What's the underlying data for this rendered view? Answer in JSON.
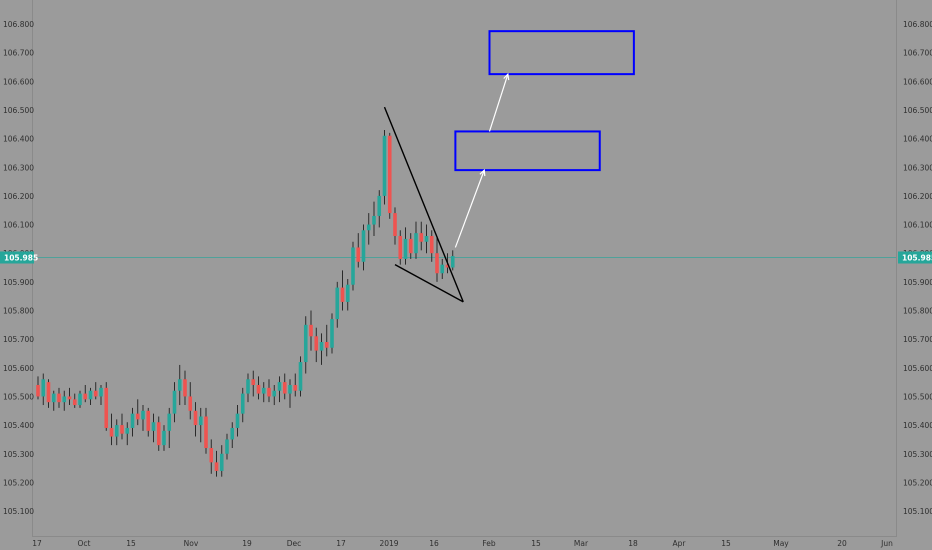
{
  "chart_data": {
    "type": "candlestick",
    "title": "",
    "ylim": [
      105.05,
      106.86
    ],
    "y_ticks": [
      "106.800",
      "106.700",
      "106.600",
      "106.500",
      "106.400",
      "106.300",
      "106.200",
      "106.100",
      "106.000",
      "105.900",
      "105.800",
      "105.700",
      "105.600",
      "105.500",
      "105.400",
      "105.300",
      "105.200",
      "105.100"
    ],
    "x_ticks": [
      "17",
      "Oct",
      "15",
      "Nov",
      "19",
      "Dec",
      "17",
      "2019",
      "16",
      "Feb",
      "15",
      "Mar",
      "18",
      "Apr",
      "15",
      "May",
      "20",
      "Jun"
    ],
    "current_price": "105.985",
    "grid": false,
    "colors": {
      "background": "#9b9b9b",
      "up": "#26a69a",
      "down": "#ef5350",
      "wick": "#1f1f1f",
      "price_line": "#26a69a",
      "target_box": "#0000ff",
      "trendline": "#000000",
      "arrow": "#ffffff"
    },
    "candles": [
      {
        "o": 105.54,
        "h": 105.57,
        "l": 105.49,
        "c": 105.5
      },
      {
        "o": 105.5,
        "h": 105.58,
        "l": 105.47,
        "c": 105.56
      },
      {
        "o": 105.55,
        "h": 105.56,
        "l": 105.46,
        "c": 105.48
      },
      {
        "o": 105.48,
        "h": 105.52,
        "l": 105.45,
        "c": 105.51
      },
      {
        "o": 105.51,
        "h": 105.53,
        "l": 105.46,
        "c": 105.48
      },
      {
        "o": 105.48,
        "h": 105.52,
        "l": 105.45,
        "c": 105.5
      },
      {
        "o": 105.5,
        "h": 105.53,
        "l": 105.47,
        "c": 105.49
      },
      {
        "o": 105.49,
        "h": 105.51,
        "l": 105.46,
        "c": 105.47
      },
      {
        "o": 105.47,
        "h": 105.52,
        "l": 105.46,
        "c": 105.51
      },
      {
        "o": 105.51,
        "h": 105.54,
        "l": 105.48,
        "c": 105.49
      },
      {
        "o": 105.49,
        "h": 105.53,
        "l": 105.47,
        "c": 105.52
      },
      {
        "o": 105.52,
        "h": 105.55,
        "l": 105.49,
        "c": 105.5
      },
      {
        "o": 105.5,
        "h": 105.54,
        "l": 105.47,
        "c": 105.53
      },
      {
        "o": 105.53,
        "h": 105.55,
        "l": 105.38,
        "c": 105.39
      },
      {
        "o": 105.39,
        "h": 105.44,
        "l": 105.33,
        "c": 105.36
      },
      {
        "o": 105.36,
        "h": 105.42,
        "l": 105.33,
        "c": 105.4
      },
      {
        "o": 105.4,
        "h": 105.44,
        "l": 105.35,
        "c": 105.37
      },
      {
        "o": 105.37,
        "h": 105.41,
        "l": 105.33,
        "c": 105.39
      },
      {
        "o": 105.39,
        "h": 105.46,
        "l": 105.36,
        "c": 105.44
      },
      {
        "o": 105.44,
        "h": 105.49,
        "l": 105.4,
        "c": 105.42
      },
      {
        "o": 105.42,
        "h": 105.47,
        "l": 105.38,
        "c": 105.45
      },
      {
        "o": 105.45,
        "h": 105.46,
        "l": 105.36,
        "c": 105.38
      },
      {
        "o": 105.38,
        "h": 105.44,
        "l": 105.34,
        "c": 105.41
      },
      {
        "o": 105.41,
        "h": 105.43,
        "l": 105.31,
        "c": 105.33
      },
      {
        "o": 105.33,
        "h": 105.4,
        "l": 105.31,
        "c": 105.38
      },
      {
        "o": 105.38,
        "h": 105.46,
        "l": 105.32,
        "c": 105.44
      },
      {
        "o": 105.44,
        "h": 105.55,
        "l": 105.41,
        "c": 105.52
      },
      {
        "o": 105.52,
        "h": 105.61,
        "l": 105.47,
        "c": 105.56
      },
      {
        "o": 105.56,
        "h": 105.59,
        "l": 105.47,
        "c": 105.5
      },
      {
        "o": 105.5,
        "h": 105.55,
        "l": 105.42,
        "c": 105.45
      },
      {
        "o": 105.45,
        "h": 105.48,
        "l": 105.36,
        "c": 105.4
      },
      {
        "o": 105.4,
        "h": 105.46,
        "l": 105.34,
        "c": 105.43
      },
      {
        "o": 105.43,
        "h": 105.46,
        "l": 105.3,
        "c": 105.32
      },
      {
        "o": 105.32,
        "h": 105.35,
        "l": 105.23,
        "c": 105.27
      },
      {
        "o": 105.27,
        "h": 105.31,
        "l": 105.22,
        "c": 105.24
      },
      {
        "o": 105.24,
        "h": 105.33,
        "l": 105.22,
        "c": 105.3
      },
      {
        "o": 105.3,
        "h": 105.37,
        "l": 105.28,
        "c": 105.35
      },
      {
        "o": 105.35,
        "h": 105.41,
        "l": 105.32,
        "c": 105.39
      },
      {
        "o": 105.39,
        "h": 105.47,
        "l": 105.36,
        "c": 105.44
      },
      {
        "o": 105.44,
        "h": 105.53,
        "l": 105.41,
        "c": 105.51
      },
      {
        "o": 105.51,
        "h": 105.58,
        "l": 105.48,
        "c": 105.56
      },
      {
        "o": 105.56,
        "h": 105.59,
        "l": 105.5,
        "c": 105.54
      },
      {
        "o": 105.54,
        "h": 105.57,
        "l": 105.49,
        "c": 105.51
      },
      {
        "o": 105.51,
        "h": 105.55,
        "l": 105.48,
        "c": 105.53
      },
      {
        "o": 105.53,
        "h": 105.56,
        "l": 105.48,
        "c": 105.5
      },
      {
        "o": 105.5,
        "h": 105.54,
        "l": 105.47,
        "c": 105.52
      },
      {
        "o": 105.52,
        "h": 105.57,
        "l": 105.48,
        "c": 105.55
      },
      {
        "o": 105.55,
        "h": 105.58,
        "l": 105.49,
        "c": 105.51
      },
      {
        "o": 105.51,
        "h": 105.56,
        "l": 105.46,
        "c": 105.54
      },
      {
        "o": 105.54,
        "h": 105.58,
        "l": 105.5,
        "c": 105.52
      },
      {
        "o": 105.52,
        "h": 105.64,
        "l": 105.5,
        "c": 105.62
      },
      {
        "o": 105.62,
        "h": 105.78,
        "l": 105.58,
        "c": 105.75
      },
      {
        "o": 105.75,
        "h": 105.8,
        "l": 105.66,
        "c": 105.71
      },
      {
        "o": 105.71,
        "h": 105.74,
        "l": 105.62,
        "c": 105.66
      },
      {
        "o": 105.66,
        "h": 105.72,
        "l": 105.61,
        "c": 105.69
      },
      {
        "o": 105.69,
        "h": 105.75,
        "l": 105.64,
        "c": 105.67
      },
      {
        "o": 105.67,
        "h": 105.79,
        "l": 105.65,
        "c": 105.77
      },
      {
        "o": 105.77,
        "h": 105.9,
        "l": 105.74,
        "c": 105.88
      },
      {
        "o": 105.88,
        "h": 105.94,
        "l": 105.8,
        "c": 105.83
      },
      {
        "o": 105.83,
        "h": 105.91,
        "l": 105.8,
        "c": 105.89
      },
      {
        "o": 105.89,
        "h": 106.04,
        "l": 105.87,
        "c": 106.02
      },
      {
        "o": 106.02,
        "h": 106.07,
        "l": 105.95,
        "c": 105.97
      },
      {
        "o": 105.97,
        "h": 106.1,
        "l": 105.94,
        "c": 106.08
      },
      {
        "o": 106.08,
        "h": 106.14,
        "l": 106.03,
        "c": 106.1
      },
      {
        "o": 106.1,
        "h": 106.18,
        "l": 106.06,
        "c": 106.13
      },
      {
        "o": 106.13,
        "h": 106.22,
        "l": 106.09,
        "c": 106.2
      },
      {
        "o": 106.2,
        "h": 106.43,
        "l": 106.17,
        "c": 106.41
      },
      {
        "o": 106.41,
        "h": 106.42,
        "l": 106.12,
        "c": 106.14
      },
      {
        "o": 106.14,
        "h": 106.16,
        "l": 106.03,
        "c": 106.06
      },
      {
        "o": 106.06,
        "h": 106.08,
        "l": 105.96,
        "c": 105.98
      },
      {
        "o": 105.98,
        "h": 106.09,
        "l": 105.96,
        "c": 106.05
      },
      {
        "o": 106.05,
        "h": 106.07,
        "l": 105.98,
        "c": 106.0
      },
      {
        "o": 106.0,
        "h": 106.11,
        "l": 105.98,
        "c": 106.07
      },
      {
        "o": 106.07,
        "h": 106.11,
        "l": 106.01,
        "c": 106.04
      },
      {
        "o": 106.04,
        "h": 106.1,
        "l": 106.0,
        "c": 106.06
      },
      {
        "o": 106.06,
        "h": 106.08,
        "l": 105.97,
        "c": 106.0
      },
      {
        "o": 106.0,
        "h": 106.06,
        "l": 105.9,
        "c": 105.93
      },
      {
        "o": 105.93,
        "h": 105.98,
        "l": 105.91,
        "c": 105.96
      },
      {
        "o": 105.96,
        "h": 106.0,
        "l": 105.93,
        "c": 105.95
      },
      {
        "o": 105.95,
        "h": 106.01,
        "l": 105.94,
        "c": 105.99
      }
    ],
    "trendlines": [
      {
        "name": "upper-trendline",
        "from": {
          "i": 66,
          "price": 106.51
        },
        "to": {
          "i": 81,
          "price": 105.83
        }
      },
      {
        "name": "lower-trendline",
        "from": {
          "i": 68,
          "price": 105.96
        },
        "to": {
          "i": 81,
          "price": 105.83
        }
      }
    ],
    "target_boxes": [
      {
        "name": "target-box-1",
        "from_i": 79.5,
        "to_i": 107,
        "price_top": 106.425,
        "price_bottom": 106.29
      },
      {
        "name": "target-box-2",
        "from_i": 86,
        "to_i": 113.5,
        "price_top": 106.775,
        "price_bottom": 106.625
      }
    ],
    "projection_arrows": [
      {
        "name": "projection-arrow-1",
        "from": {
          "i": 79.5,
          "price": 106.02
        },
        "to": {
          "i": 85,
          "price": 106.29
        }
      },
      {
        "name": "projection-arrow-2",
        "from": {
          "i": 86,
          "price": 106.425
        },
        "to": {
          "i": 89.5,
          "price": 106.625
        }
      }
    ]
  }
}
